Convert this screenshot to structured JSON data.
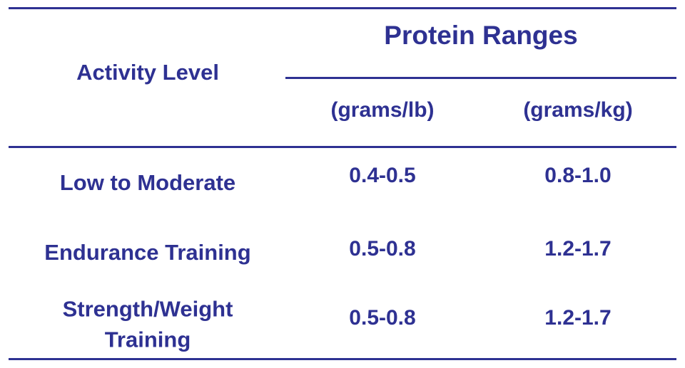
{
  "header": {
    "row_label": "Activity Level",
    "group": "Protein Ranges",
    "units": [
      "(grams/lb)",
      "(grams/kg)"
    ]
  },
  "table": {
    "rows": [
      [
        "Low to Moderate",
        "0.4-0.5",
        "0.8-1.0"
      ],
      [
        "Endurance Training",
        "0.5-0.8",
        "1.2-1.7"
      ],
      [
        "Strength/Weight Training",
        "0.5-0.8",
        "1.2-1.7"
      ]
    ]
  }
}
